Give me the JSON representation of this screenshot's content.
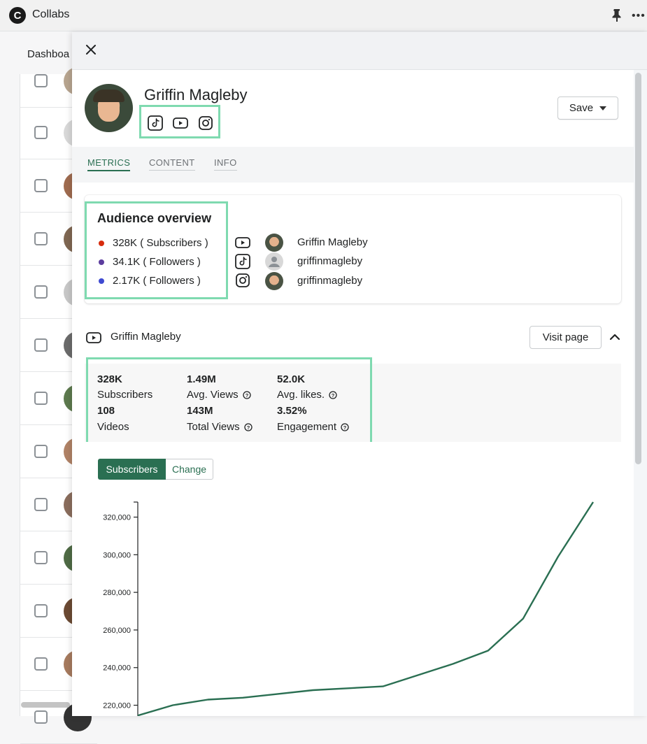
{
  "app": {
    "title": "Collabs"
  },
  "background": {
    "tab_label": "Dashboa"
  },
  "profile": {
    "name": "Griffin Magleby",
    "save_label": "Save"
  },
  "tabs": [
    {
      "label": "METRICS"
    },
    {
      "label": "CONTENT"
    },
    {
      "label": "INFO"
    }
  ],
  "audience": {
    "title": "Audience overview",
    "lines": [
      {
        "text": "328K ( Subscribers )",
        "color": "#d72c0d"
      },
      {
        "text": "34.1K ( Followers )",
        "color": "#5c3d9e"
      },
      {
        "text": "2.17K ( Followers )",
        "color": "#3f4ad1"
      }
    ],
    "accounts": [
      {
        "platform": "youtube-icon",
        "name": "Griffin Magleby"
      },
      {
        "platform": "tiktok-icon",
        "name": "griffinmagleby"
      },
      {
        "platform": "instagram-icon",
        "name": "griffinmagleby"
      }
    ]
  },
  "youtube_section": {
    "name": "Griffin Magleby",
    "visit_label": "Visit page",
    "stats": [
      {
        "value": "328K",
        "label": "Subscribers",
        "help": false
      },
      {
        "value": "1.49M",
        "label": "Avg. Views",
        "help": true
      },
      {
        "value": "52.0K",
        "label": "Avg. likes.",
        "help": true
      },
      {
        "value": "108",
        "label": "Videos",
        "help": false
      },
      {
        "value": "143M",
        "label": "Total Views",
        "help": true
      },
      {
        "value": "3.52%",
        "label": "Engagement",
        "help": true
      }
    ],
    "toggle": {
      "active": "Subscribers",
      "inactive": "Change"
    }
  },
  "colors": {
    "accent": "#2a6f52",
    "highlight": "#7fdab0"
  },
  "chart_data": {
    "type": "line",
    "title": "",
    "xlabel": "",
    "ylabel": "",
    "ylim": [
      215000,
      328000
    ],
    "yticks": [
      "220,000",
      "240,000",
      "260,000",
      "280,000",
      "300,000",
      "320,000"
    ],
    "series": [
      {
        "values": [
          214500,
          220000,
          223000,
          224000,
          226000,
          228000,
          229000,
          230000,
          236000,
          242000,
          249000,
          266000,
          299000,
          328000
        ]
      }
    ]
  }
}
